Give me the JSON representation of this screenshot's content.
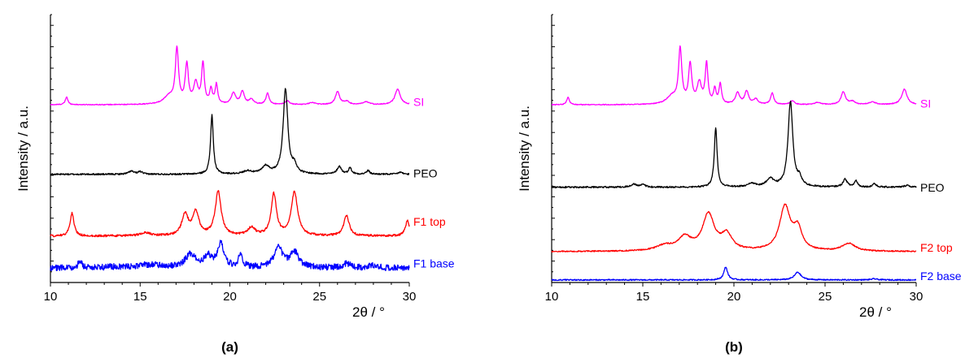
{
  "chart_data": [
    {
      "type": "line",
      "panel_label": "(a)",
      "xlabel": "2θ / °",
      "ylabel": "Intensity / a.u.",
      "xlim": [
        10,
        30
      ],
      "xticks": [
        "10",
        "15",
        "20",
        "25",
        "30"
      ],
      "y_tick_labels_shown": false,
      "legend": "inline labels at right end of each trace",
      "series": [
        {
          "name": "SI",
          "color": "#ff00ff",
          "offset": 3.45,
          "peaks": [
            [
              10.9,
              0.15,
              0.12
            ],
            [
              16.6,
              0.15,
              0.5
            ],
            [
              17.05,
              1.05,
              0.15
            ],
            [
              17.6,
              0.75,
              0.15
            ],
            [
              18.1,
              0.4,
              0.2
            ],
            [
              18.5,
              0.78,
              0.13
            ],
            [
              18.95,
              0.28,
              0.12
            ],
            [
              19.25,
              0.38,
              0.12
            ],
            [
              20.2,
              0.22,
              0.2
            ],
            [
              20.7,
              0.25,
              0.18
            ],
            [
              21.2,
              0.1,
              0.2
            ],
            [
              22.1,
              0.22,
              0.15
            ],
            [
              23.2,
              0.07,
              0.2
            ],
            [
              24.6,
              0.04,
              0.3
            ],
            [
              26.0,
              0.25,
              0.2
            ],
            [
              26.5,
              0.06,
              0.25
            ],
            [
              27.6,
              0.05,
              0.3
            ],
            [
              29.35,
              0.3,
              0.25
            ]
          ],
          "noise": 0.008
        },
        {
          "name": "PEO",
          "color": "#000000",
          "offset": 2.1,
          "peaks": [
            [
              14.5,
              0.06,
              0.25
            ],
            [
              15.0,
              0.05,
              0.2
            ],
            [
              19.0,
              1.15,
              0.13
            ],
            [
              21.0,
              0.06,
              0.4
            ],
            [
              22.0,
              0.15,
              0.35
            ],
            [
              23.1,
              1.65,
              0.22
            ],
            [
              23.6,
              0.15,
              0.2
            ],
            [
              26.1,
              0.15,
              0.2
            ],
            [
              26.7,
              0.12,
              0.15
            ],
            [
              27.7,
              0.07,
              0.15
            ],
            [
              29.5,
              0.04,
              0.2
            ]
          ],
          "noise": 0.015
        },
        {
          "name": "F1 top",
          "color": "#ff0000",
          "offset": 0.9,
          "peaks": [
            [
              11.2,
              0.45,
              0.18
            ],
            [
              15.3,
              0.06,
              0.5
            ],
            [
              17.5,
              0.4,
              0.3
            ],
            [
              18.1,
              0.45,
              0.3
            ],
            [
              19.35,
              0.85,
              0.28
            ],
            [
              21.2,
              0.15,
              0.35
            ],
            [
              22.45,
              0.8,
              0.25
            ],
            [
              23.6,
              0.85,
              0.3
            ],
            [
              26.5,
              0.4,
              0.25
            ],
            [
              29.9,
              0.3,
              0.2
            ]
          ],
          "noise": 0.02
        },
        {
          "name": "F1 base",
          "color": "#0000ff",
          "offset": 0.28,
          "peaks": [
            [
              11.65,
              0.15,
              0.15
            ],
            [
              13.5,
              0.02,
              1.0
            ],
            [
              15.5,
              0.06,
              1.0
            ],
            [
              17.8,
              0.25,
              0.5
            ],
            [
              18.8,
              0.2,
              0.4
            ],
            [
              19.5,
              0.45,
              0.3
            ],
            [
              20.6,
              0.25,
              0.2
            ],
            [
              22.7,
              0.4,
              0.4
            ],
            [
              23.6,
              0.3,
              0.4
            ],
            [
              26.5,
              0.08,
              0.4
            ],
            [
              28.0,
              0.04,
              0.5
            ]
          ],
          "noise": 0.06
        }
      ]
    },
    {
      "type": "line",
      "panel_label": "(b)",
      "xlabel": "2θ / °",
      "ylabel": "Intensity / a.u.",
      "xlim": [
        10,
        30
      ],
      "xticks": [
        "10",
        "15",
        "20",
        "25",
        "30"
      ],
      "y_tick_labels_shown": false,
      "legend": "inline labels at right end of each trace",
      "series": [
        {
          "name": "SI",
          "color": "#ff00ff",
          "offset": 3.45,
          "peaks": [
            [
              10.9,
              0.15,
              0.12
            ],
            [
              16.6,
              0.15,
              0.5
            ],
            [
              17.05,
              1.05,
              0.15
            ],
            [
              17.6,
              0.75,
              0.15
            ],
            [
              18.1,
              0.4,
              0.2
            ],
            [
              18.5,
              0.78,
              0.13
            ],
            [
              18.95,
              0.28,
              0.12
            ],
            [
              19.25,
              0.38,
              0.12
            ],
            [
              20.2,
              0.22,
              0.2
            ],
            [
              20.7,
              0.25,
              0.18
            ],
            [
              21.2,
              0.1,
              0.2
            ],
            [
              22.1,
              0.22,
              0.15
            ],
            [
              23.2,
              0.07,
              0.2
            ],
            [
              24.6,
              0.04,
              0.3
            ],
            [
              26.0,
              0.25,
              0.2
            ],
            [
              26.5,
              0.06,
              0.25
            ],
            [
              27.6,
              0.05,
              0.3
            ],
            [
              29.35,
              0.3,
              0.25
            ]
          ],
          "noise": 0.008
        },
        {
          "name": "PEO",
          "color": "#000000",
          "offset": 1.85,
          "peaks": [
            [
              14.5,
              0.06,
              0.25
            ],
            [
              15.0,
              0.05,
              0.2
            ],
            [
              19.0,
              1.15,
              0.13
            ],
            [
              21.0,
              0.06,
              0.4
            ],
            [
              22.0,
              0.15,
              0.35
            ],
            [
              23.1,
              1.65,
              0.22
            ],
            [
              23.6,
              0.15,
              0.2
            ],
            [
              26.1,
              0.15,
              0.2
            ],
            [
              26.7,
              0.12,
              0.15
            ],
            [
              27.7,
              0.07,
              0.15
            ],
            [
              29.5,
              0.04,
              0.2
            ]
          ],
          "noise": 0.015
        },
        {
          "name": "F2 top",
          "color": "#ff0000",
          "offset": 0.6,
          "peaks": [
            [
              16.2,
              0.1,
              0.8
            ],
            [
              17.3,
              0.25,
              0.6
            ],
            [
              18.6,
              0.7,
              0.55
            ],
            [
              19.6,
              0.3,
              0.5
            ],
            [
              22.8,
              0.85,
              0.5
            ],
            [
              23.5,
              0.4,
              0.4
            ],
            [
              26.3,
              0.15,
              0.6
            ]
          ],
          "noise": 0.012
        },
        {
          "name": "F2 base",
          "color": "#0000ff",
          "offset": 0.05,
          "peaks": [
            [
              19.55,
              0.25,
              0.18
            ],
            [
              23.5,
              0.15,
              0.3
            ],
            [
              27.7,
              0.02,
              0.3
            ]
          ],
          "noise": 0.012
        }
      ]
    }
  ]
}
